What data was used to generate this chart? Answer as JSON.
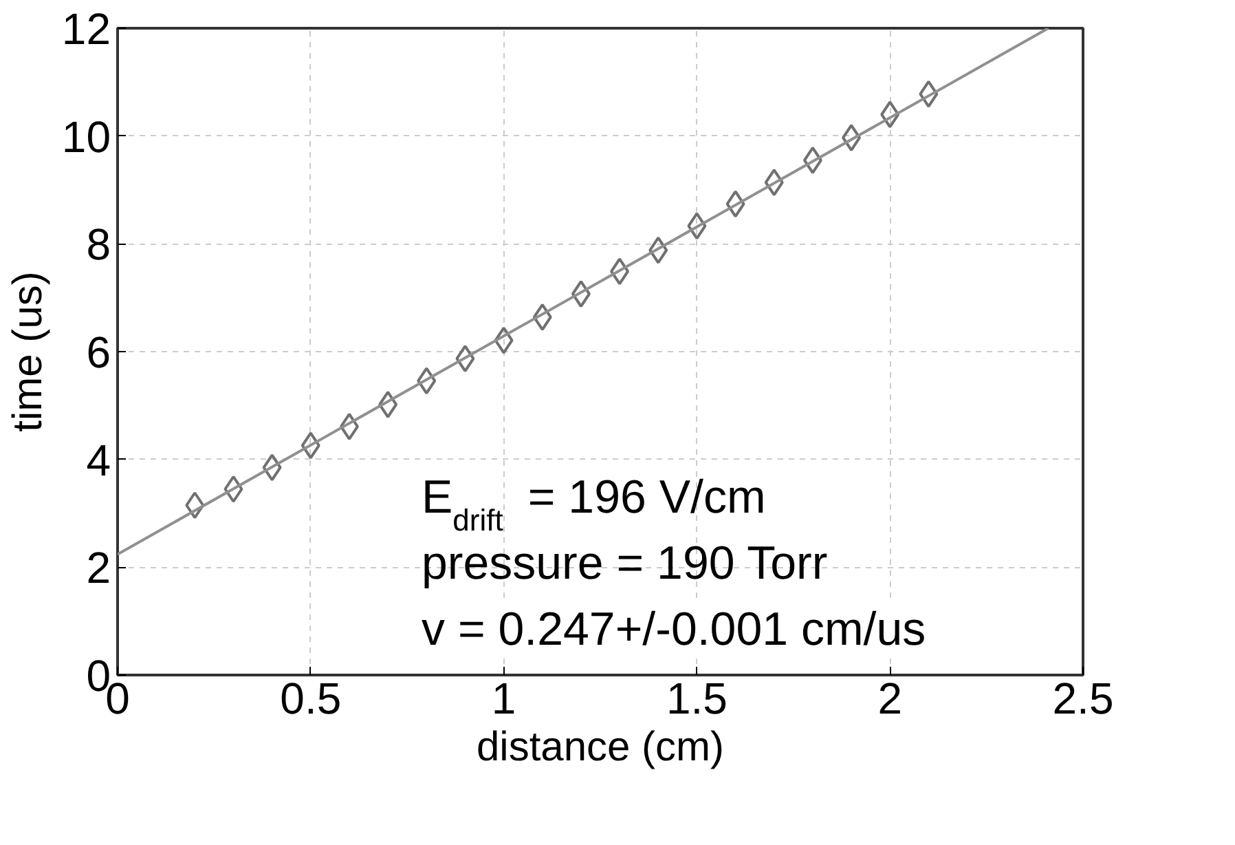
{
  "chart_data": {
    "type": "scatter",
    "xlabel": "distance (cm)",
    "ylabel": "time (us)",
    "x": [
      0.2,
      0.3,
      0.4,
      0.5,
      0.6,
      0.7,
      0.8,
      0.9,
      1.0,
      1.1,
      1.2,
      1.3,
      1.4,
      1.5,
      1.6,
      1.7,
      1.8,
      1.9,
      2.0,
      2.1
    ],
    "series": [
      {
        "color": "#707070",
        "marker": "diamond",
        "values": [
          3.15,
          3.45,
          3.85,
          4.26,
          4.61,
          5.02,
          5.46,
          5.87,
          6.21,
          6.64,
          7.07,
          7.49,
          7.88,
          8.33,
          8.74,
          9.14,
          9.55,
          9.97,
          10.4,
          10.78
        ]
      },
      {
        "type": "line",
        "color": "#909090",
        "line_style": "solid",
        "x": [
          0,
          2.41
        ],
        "values": [
          2.24,
          12
        ]
      }
    ],
    "xlim": [
      0,
      2.5
    ],
    "ylim": [
      0,
      12
    ],
    "xticks": [
      0,
      0.5,
      1,
      1.5,
      2,
      2.5
    ],
    "yticks": [
      0,
      2,
      4,
      6,
      8,
      10,
      12
    ],
    "grid": true,
    "annotations": [
      "E$_{drift}$ = 196 V/cm",
      "pressure = 190 Torr",
      "v = 0.247+/-0.001 cm/us"
    ]
  }
}
